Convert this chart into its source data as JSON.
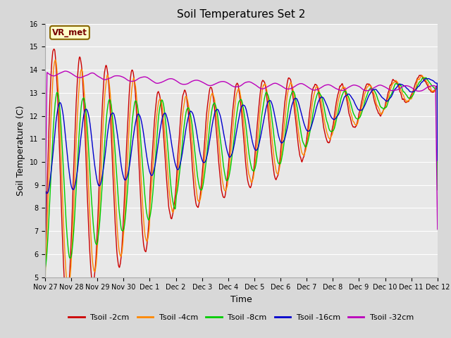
{
  "title": "Soil Temperatures Set 2",
  "xlabel": "Time",
  "ylabel": "Soil Temperature (C)",
  "ylim": [
    5.0,
    16.0
  ],
  "yticks": [
    5.0,
    6.0,
    7.0,
    8.0,
    9.0,
    10.0,
    11.0,
    12.0,
    13.0,
    14.0,
    15.0,
    16.0
  ],
  "xtick_labels": [
    "Nov 27",
    "Nov 28",
    "Nov 29",
    "Nov 30",
    "Dec 1",
    "Dec 2",
    "Dec 3",
    "Dec 4",
    "Dec 5",
    "Dec 6",
    "Dec 7",
    "Dec 8",
    "Dec 9",
    "Dec 10",
    "Dec 11",
    "Dec 12"
  ],
  "series_colors": [
    "#cc0000",
    "#ff8800",
    "#00cc00",
    "#0000cc",
    "#bb00bb"
  ],
  "series_labels": [
    "Tsoil -2cm",
    "Tsoil -4cm",
    "Tsoil -8cm",
    "Tsoil -16cm",
    "Tsoil -32cm"
  ],
  "bg_color": "#d8d8d8",
  "plot_bg": "#e8e8e8",
  "grid_color": "#ffffff",
  "annotation_text": "VR_met",
  "annotation_bg": "#ffffcc",
  "annotation_border": "#886600",
  "title_fontsize": 11,
  "axis_fontsize": 9,
  "tick_fontsize": 7
}
